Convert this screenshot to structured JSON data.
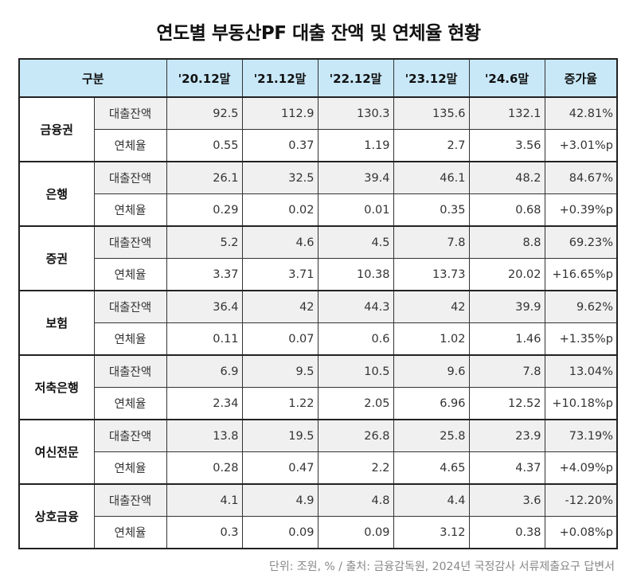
{
  "title": "연도별 부동산PF 대출 잔액 및 연체율 현황",
  "table": {
    "headers": [
      "구분",
      "'20.12말",
      "'21.12말",
      "'22.12말",
      "'23.12말",
      "'24.6말",
      "증가율"
    ],
    "groups": [
      {
        "name": "금융권",
        "loan": {
          "label": "대출잔액",
          "values": [
            "92.5",
            "112.9",
            "130.3",
            "135.6",
            "132.1"
          ],
          "growth": "42.81%"
        },
        "rate": {
          "label": "연체율",
          "values": [
            "0.55",
            "0.37",
            "1.19",
            "2.7",
            "3.56"
          ],
          "growth": "+3.01%p"
        }
      },
      {
        "name": "은행",
        "loan": {
          "label": "대출잔액",
          "values": [
            "26.1",
            "32.5",
            "39.4",
            "46.1",
            "48.2"
          ],
          "growth": "84.67%"
        },
        "rate": {
          "label": "연체율",
          "values": [
            "0.29",
            "0.02",
            "0.01",
            "0.35",
            "0.68"
          ],
          "growth": "+0.39%p"
        }
      },
      {
        "name": "증권",
        "loan": {
          "label": "대출잔액",
          "values": [
            "5.2",
            "4.6",
            "4.5",
            "7.8",
            "8.8"
          ],
          "growth": "69.23%"
        },
        "rate": {
          "label": "연체율",
          "values": [
            "3.37",
            "3.71",
            "10.38",
            "13.73",
            "20.02"
          ],
          "growth": "+16.65%p"
        }
      },
      {
        "name": "보험",
        "loan": {
          "label": "대출잔액",
          "values": [
            "36.4",
            "42",
            "44.3",
            "42",
            "39.9"
          ],
          "growth": "9.62%"
        },
        "rate": {
          "label": "연체율",
          "values": [
            "0.11",
            "0.07",
            "0.6",
            "1.02",
            "1.46"
          ],
          "growth": "+1.35%p"
        }
      },
      {
        "name": "저축은행",
        "loan": {
          "label": "대출잔액",
          "values": [
            "6.9",
            "9.5",
            "10.5",
            "9.6",
            "7.8"
          ],
          "growth": "13.04%"
        },
        "rate": {
          "label": "연체율",
          "values": [
            "2.34",
            "1.22",
            "2.05",
            "6.96",
            "12.52"
          ],
          "growth": "+10.18%p"
        }
      },
      {
        "name": "여신전문",
        "loan": {
          "label": "대출잔액",
          "values": [
            "13.8",
            "19.5",
            "26.8",
            "25.8",
            "23.9"
          ],
          "growth": "73.19%"
        },
        "rate": {
          "label": "연체율",
          "values": [
            "0.28",
            "0.47",
            "2.2",
            "4.65",
            "4.37"
          ],
          "growth": "+4.09%p"
        }
      },
      {
        "name": "상호금융",
        "loan": {
          "label": "대출잔액",
          "values": [
            "4.1",
            "4.9",
            "4.8",
            "4.4",
            "3.6"
          ],
          "growth": "-12.20%"
        },
        "rate": {
          "label": "연체율",
          "values": [
            "0.3",
            "0.09",
            "0.09",
            "3.12",
            "0.38"
          ],
          "growth": "+0.08%p"
        }
      }
    ]
  },
  "footnote": "단위: 조원, % / 출처: 금융감독원, 2024년 국정감사 서류제출요구 답변서",
  "colors": {
    "header_bg": "#c8e8f8",
    "loan_row_bg": "#f0f0f0"
  }
}
